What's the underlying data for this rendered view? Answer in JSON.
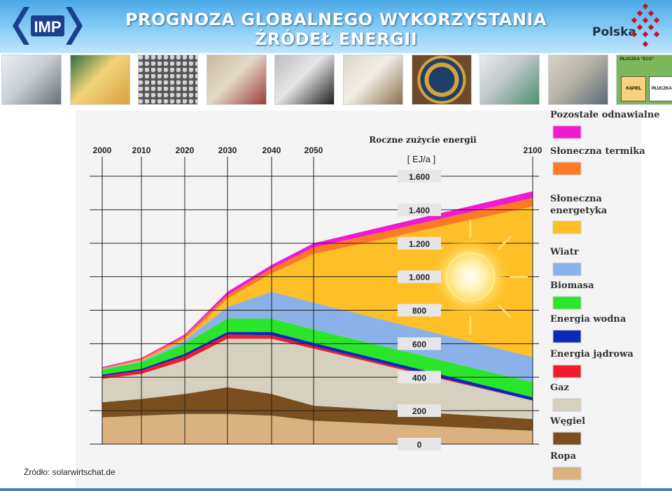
{
  "header": {
    "logo_text": "IMP",
    "title_line1": "PROGNOZA GLOBALNEGO WYKORZYSTANIA",
    "title_line2": "ŹRÓDEŁ ENERGII",
    "country": "Polska"
  },
  "strip": {
    "images": [
      {
        "name": "lab-equipment-photo",
        "colors": [
          "#e8eef2",
          "#6a6f78",
          "#c9d0d6"
        ]
      },
      {
        "name": "brass-parts-photo",
        "colors": [
          "#2f6f3f",
          "#d9a23a",
          "#f1d27a"
        ]
      },
      {
        "name": "metal-pellets-photo",
        "colors": [
          "#9a9a9a",
          "#555555",
          "#d4d4d4"
        ]
      },
      {
        "name": "coating-samples-photo",
        "colors": [
          "#c9b79b",
          "#9c3b3b",
          "#e3dbc9"
        ]
      },
      {
        "name": "microstructure-photo",
        "colors": [
          "#bdbdbd",
          "#1d1d1d",
          "#e6e6e6"
        ]
      },
      {
        "name": "chemistry-lab-photo",
        "colors": [
          "#dcd6c8",
          "#8a6f4f",
          "#f2eee6"
        ]
      },
      {
        "name": "astronomical-clock-photo",
        "colors": [
          "#1f3f6a",
          "#d4a43a",
          "#6d4a2a"
        ]
      },
      {
        "name": "laboratory-instrument-photo",
        "colors": [
          "#e9ecec",
          "#4e8f6f",
          "#bfc6c9"
        ]
      },
      {
        "name": "computer-workstation-photo",
        "colors": [
          "#d8d2c5",
          "#5a6a78",
          "#b8b3a8"
        ]
      },
      {
        "name": "electroplating-scheme-diagram",
        "colors": [
          "#7cb85a",
          "#f7d27a",
          "#4a90c8"
        ]
      },
      {
        "name": "surface-texture-photo",
        "colors": [
          "#3a3a3a",
          "#bdbdbd",
          "#7a7a7a"
        ]
      }
    ],
    "diagram_label_top": "PŁUCZKA \"ECO\"",
    "diagram_label_bath": "KĄPIEL",
    "diagram_label_rinse": "PŁUCZKA"
  },
  "chart_data": {
    "type": "area",
    "stacked": true,
    "title": "Roczne zużycie energii",
    "ylabel": "[ EJ/a ]",
    "x": [
      2000,
      2010,
      2020,
      2030,
      2040,
      2050,
      2100
    ],
    "x_tick_labels": [
      "2000",
      "2010",
      "2020",
      "2030",
      "2040",
      "2050",
      "2100"
    ],
    "y_tick_labels": [
      "1.600",
      "1.400",
      "1.200",
      "1.000",
      "800",
      "600",
      "400",
      "200",
      "0"
    ],
    "y_ticks": [
      1600,
      1400,
      1200,
      1000,
      800,
      600,
      400,
      200,
      0
    ],
    "ylim": [
      0,
      1600
    ],
    "grid": true,
    "legend_position": "right",
    "series": [
      {
        "name": "Ropa",
        "color": "#d9b27f",
        "values": [
          160,
          170,
          180,
          180,
          170,
          140,
          80
        ]
      },
      {
        "name": "Węgiel",
        "color": "#7a4e1e",
        "values": [
          90,
          100,
          120,
          160,
          130,
          90,
          70
        ]
      },
      {
        "name": "Gaz",
        "color": "#d6d1be",
        "values": [
          140,
          150,
          200,
          290,
          330,
          340,
          110
        ]
      },
      {
        "name": "Energia jądrowa",
        "color": "#ee1c2e",
        "values": [
          15,
          20,
          25,
          25,
          20,
          15,
          0
        ]
      },
      {
        "name": "Energia wodna",
        "color": "#1026b8",
        "values": [
          10,
          10,
          15,
          15,
          20,
          20,
          20
        ]
      },
      {
        "name": "Biomasa",
        "color": "#2ae62a",
        "values": [
          30,
          40,
          60,
          80,
          80,
          80,
          90
        ]
      },
      {
        "name": "Wiatr",
        "color": "#8ab2e8",
        "values": [
          5,
          5,
          20,
          70,
          160,
          160,
          150
        ]
      },
      {
        "name": "Słoneczna energetyka",
        "color": "#ffbf26",
        "values": [
          0,
          5,
          10,
          50,
          110,
          290,
          900
        ]
      },
      {
        "name": "Słoneczna termika",
        "color": "#ff7a24",
        "values": [
          5,
          10,
          15,
          20,
          30,
          40,
          50
        ]
      },
      {
        "name": "Pozostałe odnawialne",
        "color": "#f01ad2",
        "values": [
          5,
          5,
          10,
          20,
          20,
          25,
          40
        ]
      }
    ],
    "legend_order": [
      "Pozostałe odnawialne",
      "Słoneczna termika",
      "Słoneczna energetyka",
      "Wiatr",
      "Biomasa",
      "Energia wodna",
      "Energia jądrowa",
      "Gaz",
      "Węgiel",
      "Ropa"
    ],
    "legend_labels": [
      {
        "line1": "Pozostałe odnawialne",
        "line2": ""
      },
      {
        "line1": "Słoneczna termika",
        "line2": ""
      },
      {
        "line1": "Słoneczna",
        "line2": "energetyka"
      },
      {
        "line1": "Wiatr",
        "line2": ""
      },
      {
        "line1": "Biomasa",
        "line2": ""
      },
      {
        "line1": "Energia wodna",
        "line2": ""
      },
      {
        "line1": "Energia jądrowa",
        "line2": ""
      },
      {
        "line1": "Gaz",
        "line2": ""
      },
      {
        "line1": "Węgiel",
        "line2": ""
      },
      {
        "line1": "Ropa",
        "line2": ""
      }
    ]
  },
  "source": "Źródło: solarwirtschat.de",
  "colors": {
    "header_top": "#4aa8e6",
    "header_bottom": "#bfe5fb",
    "footer": "#3b86c4"
  }
}
